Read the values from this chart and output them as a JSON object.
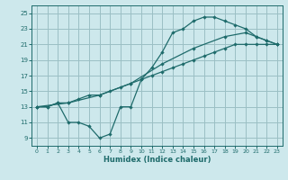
{
  "xlabel": "Humidex (Indice chaleur)",
  "bg_color": "#cde8ec",
  "grid_color": "#9bbfc4",
  "line_color": "#1e6b6b",
  "xlim": [
    -0.5,
    23.5
  ],
  "ylim": [
    8.0,
    26.0
  ],
  "xticks": [
    0,
    1,
    2,
    3,
    4,
    5,
    6,
    7,
    8,
    9,
    10,
    11,
    12,
    13,
    14,
    15,
    16,
    17,
    18,
    19,
    20,
    21,
    22,
    23
  ],
  "yticks": [
    9,
    11,
    13,
    15,
    17,
    19,
    21,
    23,
    25
  ],
  "line1_x": [
    0,
    1,
    2,
    3,
    4,
    5,
    6,
    7,
    8,
    9,
    10,
    11,
    12,
    13,
    14,
    15,
    16,
    17,
    18,
    19,
    20,
    21,
    22,
    23
  ],
  "line1_y": [
    13,
    13,
    13.5,
    11,
    11,
    10.5,
    9,
    9.5,
    13,
    13,
    16.5,
    18,
    20,
    22.5,
    23,
    24,
    24.5,
    24.5,
    24,
    23.5,
    23,
    22,
    21.5,
    21
  ],
  "line2_x": [
    0,
    1,
    2,
    3,
    4,
    5,
    6,
    7,
    8,
    9,
    10,
    11,
    12,
    13,
    14,
    15,
    16,
    17,
    18,
    19,
    20,
    21,
    22,
    23
  ],
  "line2_y": [
    13,
    13,
    13.5,
    13.5,
    14,
    14.5,
    14.5,
    15,
    15.5,
    16,
    16.5,
    17,
    17.5,
    18,
    18.5,
    19,
    19.5,
    20,
    20.5,
    21,
    21,
    21,
    21,
    21
  ],
  "line3_x": [
    0,
    3,
    6,
    9,
    12,
    15,
    18,
    20,
    21,
    22,
    23
  ],
  "line3_y": [
    13,
    13.5,
    14.5,
    16,
    18.5,
    20.5,
    22,
    22.5,
    22,
    21.5,
    21
  ]
}
